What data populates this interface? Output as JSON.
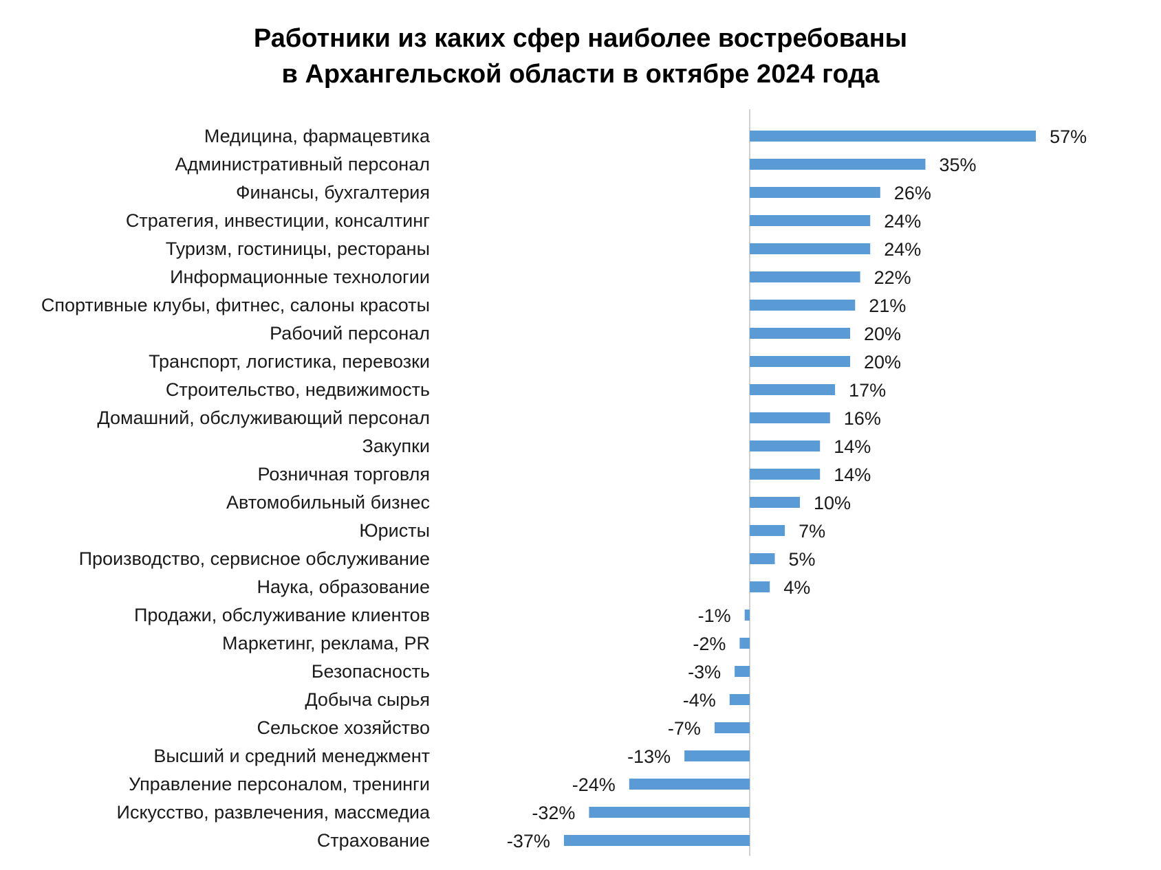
{
  "chart_data": {
    "type": "bar",
    "orientation": "horizontal",
    "title_lines": [
      "Работники из каких сфер наиболее востребованы",
      "в Архангельской области в октябре 2024 года"
    ],
    "categories": [
      "Медицина, фармацевтика",
      "Административный персонал",
      "Финансы, бухгалтерия",
      "Стратегия, инвестиции, консалтинг",
      "Туризм, гостиницы, рестораны",
      "Информационные технологии",
      "Спортивные клубы, фитнес, салоны красоты",
      "Рабочий персонал",
      "Транспорт, логистика, перевозки",
      "Строительство, недвижимость",
      "Домашний, обслуживающий персонал",
      "Закупки",
      "Розничная торговля",
      "Автомобильный бизнес",
      "Юристы",
      "Производство, сервисное обслуживание",
      "Наука, образование",
      "Продажи, обслуживание клиентов",
      "Маркетинг, реклама, PR",
      "Безопасность",
      "Добыча сырья",
      "Сельское хозяйство",
      "Высший и средний менеджмент",
      "Управление персоналом, тренинги",
      "Искусство, развлечения, массмедиа",
      "Страхование"
    ],
    "values": [
      57,
      35,
      26,
      24,
      24,
      22,
      21,
      20,
      20,
      17,
      16,
      14,
      14,
      10,
      7,
      5,
      4,
      -1,
      -2,
      -3,
      -4,
      -7,
      -13,
      -24,
      -32,
      -37
    ],
    "value_labels": [
      "57%",
      "35%",
      "26%",
      "24%",
      "24%",
      "22%",
      "21%",
      "20%",
      "20%",
      "17%",
      "16%",
      "14%",
      "14%",
      "10%",
      "7%",
      "5%",
      "4%",
      "-1%",
      "-2%",
      "-3%",
      "-4%",
      "-7%",
      "-13%",
      "-24%",
      "-32%",
      "-37%"
    ],
    "unit": "%",
    "bar_color": "#5b9bd5",
    "axis_line_color": "#d0d0d0",
    "grid": false,
    "legend": "none"
  }
}
